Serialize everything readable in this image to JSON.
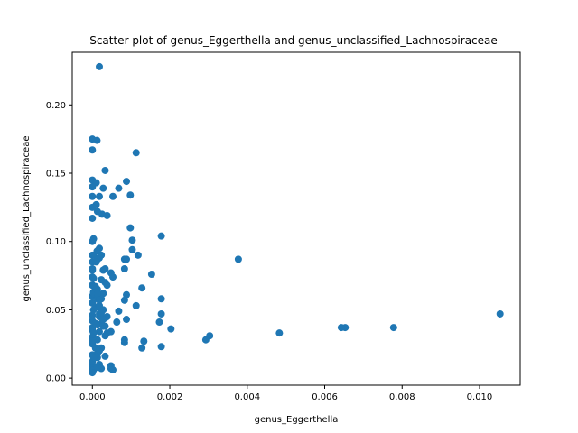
{
  "chart_data": {
    "type": "scatter",
    "title": "Scatter plot of genus_Eggerthella and genus_unclassified_Lachnospiraceae",
    "xlabel": "genus_Eggerthella",
    "ylabel": "genus_unclassified_Lachnospiraceae",
    "xlim": [
      -0.00052,
      0.01105
    ],
    "ylim": [
      -0.0052,
      0.2385
    ],
    "xticks": [
      0.0,
      0.002,
      0.004,
      0.006,
      0.008,
      0.01
    ],
    "xtick_labels": [
      "0.000",
      "0.002",
      "0.004",
      "0.006",
      "0.008",
      "0.010"
    ],
    "yticks": [
      0.0,
      0.05,
      0.1,
      0.15,
      0.2
    ],
    "ytick_labels": [
      "0.00",
      "0.05",
      "0.10",
      "0.15",
      "0.20"
    ],
    "grid": false,
    "marker_color": "#1f77b4",
    "series": [
      {
        "x": [
          0.00018,
          0.0,
          0.00012,
          0.00113,
          0.0,
          0.00033,
          0.0,
          0.0001,
          0.0,
          0.00088,
          0.00068,
          0.00028,
          0.00018,
          0.00053,
          0.00098,
          0.0,
          0.0001,
          0.0,
          0.00025,
          0.00013,
          0.00038,
          0.0,
          0.00018,
          3e-05,
          0.00098,
          0.0,
          0.00012,
          3e-05,
          0.00178,
          0.00103,
          0.00023,
          0.0,
          0.00018,
          0.00103,
          0.00118,
          0.0,
          0.00013,
          0.00083,
          0.00028,
          0.00377,
          0.00088,
          0.0001,
          0.00033,
          0.00083,
          0.0,
          0.00153,
          0.00048,
          0.00053,
          0.0,
          0.00023,
          0.00033,
          0.00038,
          0.0,
          0.00013,
          0.00128,
          3e-05,
          0.00028,
          0.00088,
          0.0,
          0.00178,
          0.00083,
          0.00023,
          0.00113,
          0.0,
          0.00013,
          0.00068,
          0.00178,
          0.0,
          0.00018,
          0.00033,
          0.00088,
          0.00173,
          0.00063,
          0.0,
          0.00023,
          0.00203,
          0.00013,
          0.00028,
          0.00048,
          0.0,
          0.00653,
          0.00643,
          0.00778,
          0.01053,
          0.00483,
          0.00303,
          0.00293,
          0.00133,
          0.00083,
          0.0,
          0.00018,
          0.00038,
          0.00033,
          0.0,
          0.00013,
          0.00178,
          0.00128,
          0.00083,
          0.0,
          0.00023,
          0.00033,
          0.0,
          0.00013,
          0.00048,
          0.00018,
          0.0,
          0.0,
          3e-05,
          0.00013,
          0.00023,
          0.00048,
          0.00053,
          0.0,
          3e-05,
          0.0,
          0.00028,
          0.00038,
          0.00018,
          8e-05,
          0.0,
          3e-05,
          0.00013,
          0.00018,
          0.00023,
          0.00028,
          0.00033,
          0.0,
          3e-05,
          8e-05,
          0.00013,
          0.00018,
          3e-05,
          0.0,
          8e-05,
          0.00013,
          0.0,
          3e-05,
          0.00018
        ],
        "y": [
          0.228,
          0.175,
          0.174,
          0.165,
          0.167,
          0.152,
          0.145,
          0.143,
          0.14,
          0.144,
          0.139,
          0.139,
          0.133,
          0.133,
          0.134,
          0.133,
          0.127,
          0.125,
          0.12,
          0.122,
          0.119,
          0.117,
          0.095,
          0.102,
          0.11,
          0.1,
          0.093,
          0.09,
          0.104,
          0.101,
          0.09,
          0.09,
          0.088,
          0.094,
          0.09,
          0.085,
          0.087,
          0.087,
          0.079,
          0.087,
          0.087,
          0.085,
          0.08,
          0.08,
          0.08,
          0.076,
          0.077,
          0.074,
          0.074,
          0.072,
          0.07,
          0.068,
          0.068,
          0.065,
          0.066,
          0.063,
          0.062,
          0.061,
          0.06,
          0.058,
          0.057,
          0.058,
          0.053,
          0.055,
          0.052,
          0.049,
          0.047,
          0.046,
          0.047,
          0.044,
          0.043,
          0.041,
          0.041,
          0.042,
          0.04,
          0.036,
          0.039,
          0.038,
          0.034,
          0.037,
          0.037,
          0.037,
          0.037,
          0.047,
          0.033,
          0.031,
          0.028,
          0.027,
          0.026,
          0.035,
          0.034,
          0.033,
          0.031,
          0.03,
          0.028,
          0.023,
          0.022,
          0.028,
          0.025,
          0.022,
          0.016,
          0.017,
          0.015,
          0.009,
          0.01,
          0.009,
          0.006,
          0.006,
          0.008,
          0.007,
          0.007,
          0.006,
          0.004,
          0.05,
          0.055,
          0.05,
          0.045,
          0.045,
          0.04,
          0.068,
          0.062,
          0.058,
          0.053,
          0.048,
          0.043,
          0.038,
          0.079,
          0.073,
          0.067,
          0.062,
          0.057,
          0.033,
          0.027,
          0.022,
          0.018,
          0.012,
          0.015,
          0.02
        ]
      }
    ]
  }
}
